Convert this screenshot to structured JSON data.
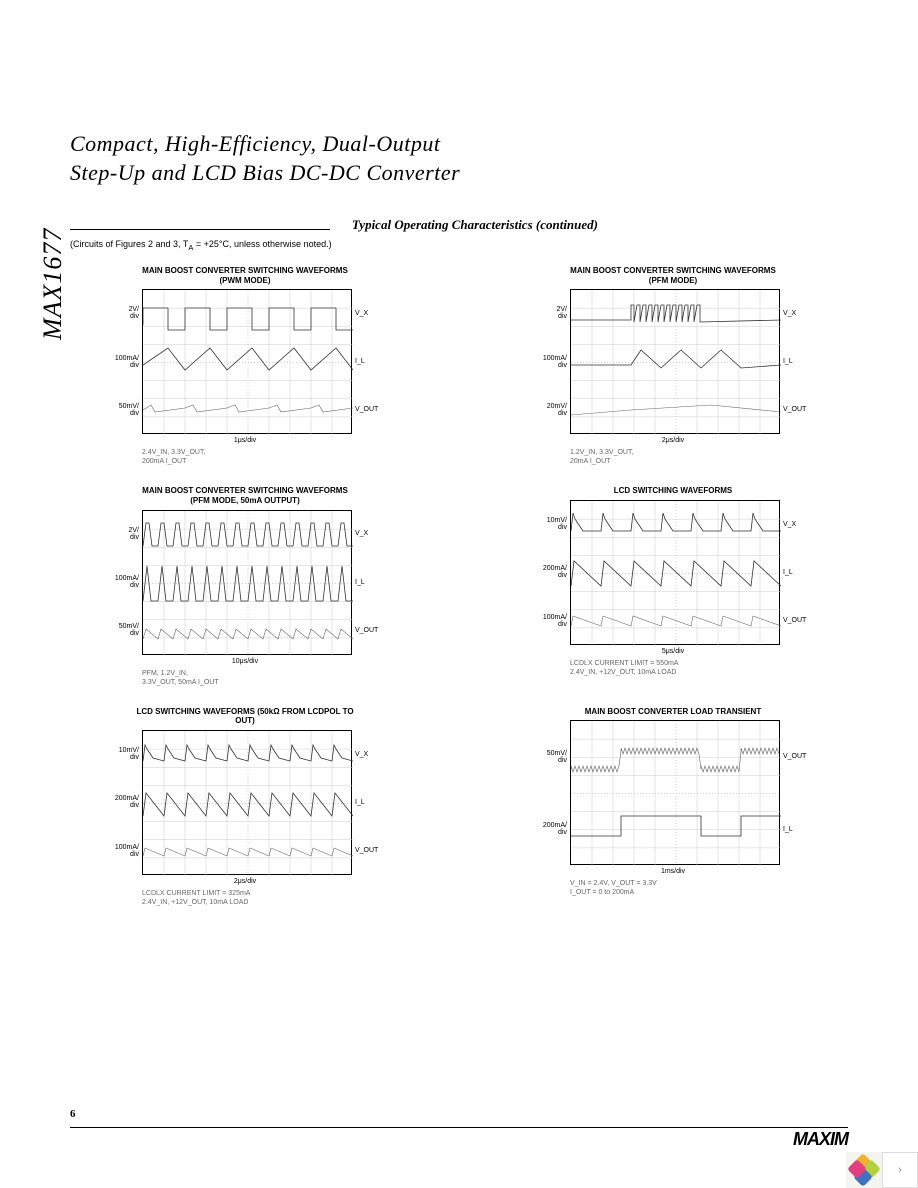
{
  "part_number": "MAX1677",
  "title_line1": "Compact, High-Efficiency, Dual-Output",
  "title_line2": "Step-Up and LCD Bias DC-DC Converter",
  "section_heading": "Typical Operating Characteristics (continued)",
  "note": "(Circuits of Figures 2 and 3, T",
  "note_sub": "A",
  "note_tail": " = +25°C, unless otherwise noted.)",
  "page_number": "6",
  "logo_text": "MAXIM",
  "charts": [
    {
      "title": "MAIN BOOST CONVERTER SWITCHING WAVEFORMS (PWM MODE)",
      "y_labels": [
        "2V/\ndiv",
        "100mA/\ndiv",
        "50mV/\ndiv"
      ],
      "r_labels": [
        "V_X",
        "I_L",
        "V_OUT"
      ],
      "x_label": "1μs/div",
      "caption": "2.4V_IN, 3.3V_OUT,\n200mA I_OUT",
      "svg": "pwm"
    },
    {
      "title": "MAIN BOOST CONVERTER SWITCHING WAVEFORMS (PFM MODE)",
      "y_labels": [
        "2V/\ndiv",
        "100mA/\ndiv",
        "20mV/\ndiv"
      ],
      "r_labels": [
        "V_X",
        "I_L",
        "V_OUT"
      ],
      "x_label": "2μs/div",
      "caption": "1.2V_IN, 3.3V_OUT,\n20mA I_OUT",
      "svg": "pfm"
    },
    {
      "title": "MAIN BOOST CONVERTER SWITCHING WAVEFORMS (PFM MODE, 50mA OUTPUT)",
      "y_labels": [
        "2V/\ndiv",
        "100mA/\ndiv",
        "50mV/\ndiv"
      ],
      "r_labels": [
        "V_X",
        "I_L",
        "V_OUT"
      ],
      "x_label": "10μs/div",
      "caption": "PFM, 1.2V_IN,\n3.3V_OUT, 50mA I_OUT",
      "svg": "pfm50"
    },
    {
      "title": "LCD SWITCHING WAVEFORMS",
      "y_labels": [
        "10mV/\ndiv",
        "200mA/\ndiv",
        "100mA/\ndiv"
      ],
      "r_labels": [
        "V_X",
        "I_L",
        "V_OUT"
      ],
      "x_label": "5μs/div",
      "caption": "LCDLX CURRENT LIMIT = 550mA\n2.4V_IN, +12V_OUT, 10mA LOAD",
      "svg": "lcd"
    },
    {
      "title": "LCD SWITCHING WAVEFORMS (50kΩ FROM LCDPOL TO OUT)",
      "y_labels": [
        "10mV/\ndiv",
        "200mA/\ndiv",
        "100mA/\ndiv"
      ],
      "r_labels": [
        "V_X",
        "I_L",
        "V_OUT"
      ],
      "x_label": "2μs/div",
      "caption": "LCDLX CURRENT LIMIT = 325mA\n2.4V_IN, +12V_OUT, 10mA LOAD",
      "svg": "lcd2"
    },
    {
      "title": "MAIN BOOST CONVERTER LOAD TRANSIENT",
      "y_labels": [
        "50mV/\ndiv",
        "200mA/\ndiv"
      ],
      "r_labels": [
        "V_OUT",
        "I_L"
      ],
      "x_label": "1ms/div",
      "caption": "V_IN = 2.4V, V_OUT = 3.3V\nI_OUT = 0 to 200mA",
      "svg": "transient"
    }
  ]
}
